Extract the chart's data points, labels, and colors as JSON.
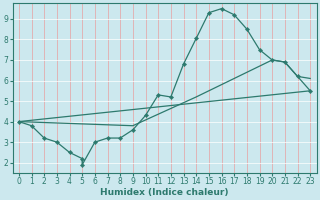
{
  "xlabel": "Humidex (Indice chaleur)",
  "xlim": [
    -0.5,
    23.5
  ],
  "ylim": [
    1.5,
    9.75
  ],
  "xticks": [
    0,
    1,
    2,
    3,
    4,
    5,
    6,
    7,
    8,
    9,
    10,
    11,
    12,
    13,
    14,
    15,
    16,
    17,
    18,
    19,
    20,
    21,
    22,
    23
  ],
  "yticks": [
    2,
    3,
    4,
    5,
    6,
    7,
    8,
    9
  ],
  "bg_color": "#cce8ee",
  "grid_color_major": "#ffffff",
  "grid_color_minor": "#e8f4f7",
  "line_color": "#2d7a6e",
  "line1_x": [
    0,
    1,
    2,
    3,
    4,
    5,
    5,
    6,
    7,
    8,
    9,
    10,
    11,
    12,
    13,
    14,
    15,
    16,
    17,
    18,
    19,
    20,
    21,
    22,
    23
  ],
  "line1_y": [
    4.0,
    3.8,
    3.2,
    3.0,
    2.5,
    2.2,
    1.9,
    3.0,
    3.2,
    3.2,
    3.6,
    4.3,
    5.3,
    5.2,
    6.8,
    8.05,
    9.3,
    9.5,
    9.2,
    8.5,
    7.5,
    7.0,
    6.9,
    6.2,
    5.5
  ],
  "line2_x": [
    0,
    23
  ],
  "line2_y": [
    4.0,
    5.5
  ],
  "line3_x": [
    0,
    9,
    14,
    20,
    21,
    22,
    23
  ],
  "line3_y": [
    4.0,
    3.8,
    5.2,
    7.0,
    6.9,
    6.2,
    6.1
  ]
}
